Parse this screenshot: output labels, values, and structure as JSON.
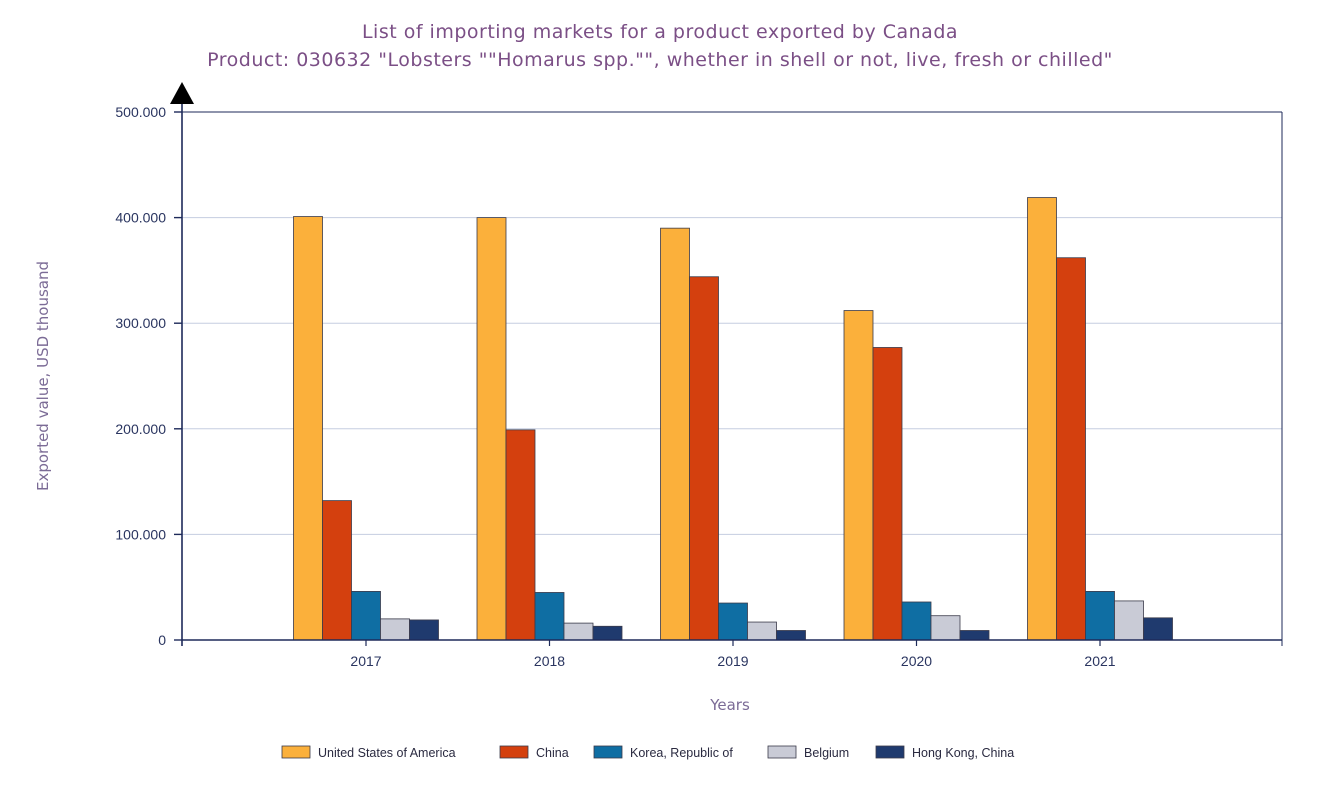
{
  "chart_data": {
    "type": "bar",
    "title": "List of importing markets for a product exported by Canada",
    "subtitle": "Product: 030632 \"Lobsters \"\"Homarus spp.\"\", whether in shell or not, live, fresh or chilled\"",
    "xlabel": "Years",
    "ylabel": "Exported value, USD thousand",
    "categories": [
      "2017",
      "2018",
      "2019",
      "2020",
      "2021"
    ],
    "ylim": [
      0,
      500000
    ],
    "yticks": [
      0,
      100000,
      200000,
      300000,
      400000,
      500000
    ],
    "ytick_labels": [
      "0",
      "100.000",
      "200.000",
      "300.000",
      "400.000",
      "500.000"
    ],
    "grid": true,
    "legend_position": "bottom",
    "series": [
      {
        "name": "United States of America",
        "color": "#fbb03b",
        "values": [
          401000,
          400000,
          390000,
          312000,
          419000
        ]
      },
      {
        "name": "China",
        "color": "#d4400e",
        "values": [
          132000,
          199000,
          344000,
          277000,
          362000
        ]
      },
      {
        "name": "Korea, Republic of",
        "color": "#0f6ea3",
        "values": [
          46000,
          45000,
          35000,
          36000,
          46000
        ]
      },
      {
        "name": "Belgium",
        "color": "#c9cbd6",
        "values": [
          20000,
          16000,
          17000,
          23000,
          37000
        ]
      },
      {
        "name": "Hong Kong, China",
        "color": "#1f3a6e",
        "values": [
          19000,
          13000,
          9000,
          9000,
          21000
        ]
      }
    ]
  }
}
